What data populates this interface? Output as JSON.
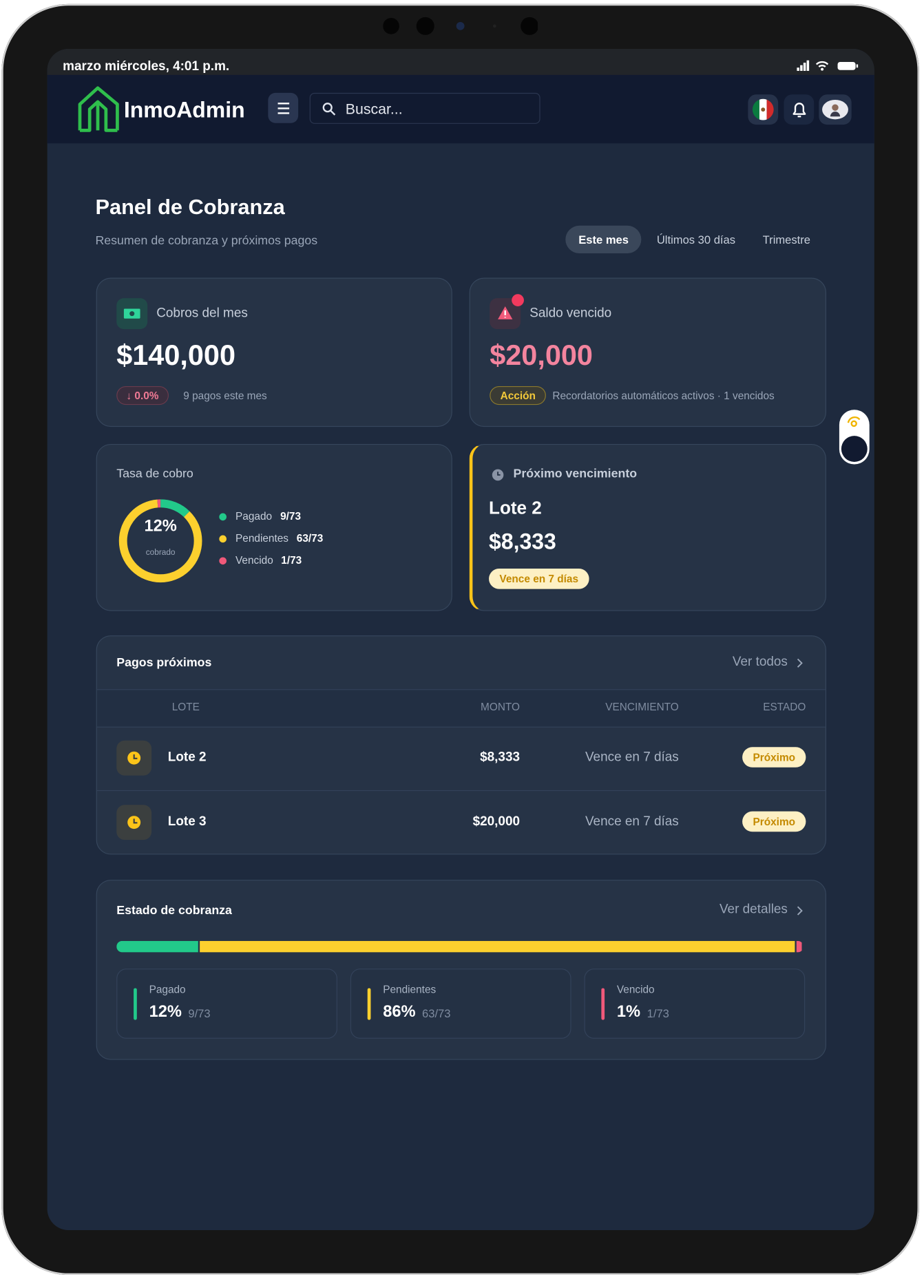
{
  "status_bar": {
    "time": "marzo miércoles, 4:01 p.m."
  },
  "header": {
    "brand": "InmoAdmin",
    "search_placeholder": "Buscar..."
  },
  "page": {
    "title": "Panel de Cobranza",
    "subtitle": "Resumen de cobranza y próximos pagos",
    "filters": [
      "Este mes",
      "Últimos 30 días",
      "Trimestre"
    ]
  },
  "cobros": {
    "label": "Cobros del mes",
    "value": "$140,000",
    "change": "↓ 0.0%",
    "note": "9 pagos este mes"
  },
  "saldo": {
    "label": "Saldo vencido",
    "value": "$20,000",
    "badge": "Acción",
    "note": "Recordatorios automáticos activos · 1 vencidos"
  },
  "tasa": {
    "label": "Tasa de cobro",
    "percent": "12%",
    "caption": "cobrado",
    "legend": [
      {
        "name": "Pagado",
        "value": 9,
        "label": "9/73",
        "color": "#22c98a"
      },
      {
        "name": "Pendientes",
        "value": 63,
        "label": "63/73",
        "color": "#fcd02e"
      },
      {
        "name": "Vencido",
        "value": 1,
        "label": "1/73",
        "color": "#f0597a"
      }
    ]
  },
  "proximo": {
    "label": "Próximo vencimiento",
    "lote": "Lote 2",
    "amount": "$8,333",
    "badge": "Vence en 7 días"
  },
  "pagos": {
    "title": "Pagos próximos",
    "link": "Ver todos",
    "columns": [
      "LOTE",
      "MONTO",
      "VENCIMIENTO",
      "ESTADO"
    ],
    "rows": [
      [
        "Lote 2",
        "$8,333",
        "Vence en 7 días",
        "Próximo"
      ],
      [
        "Lote 3",
        "$20,000",
        "Vence en 7 días",
        "Próximo"
      ]
    ]
  },
  "estado": {
    "title": "Estado de cobranza",
    "link": "Ver detalles",
    "stats": [
      {
        "name": "Pagado",
        "value": 12,
        "label": "12%",
        "count": "9/73",
        "color": "#22c98a"
      },
      {
        "name": "Pendientes",
        "value": 86,
        "label": "86%",
        "count": "63/73",
        "color": "#fcd02e"
      },
      {
        "name": "Vencido",
        "value": 1,
        "label": "1%",
        "count": "1/73",
        "color": "#f0597a"
      }
    ]
  }
}
